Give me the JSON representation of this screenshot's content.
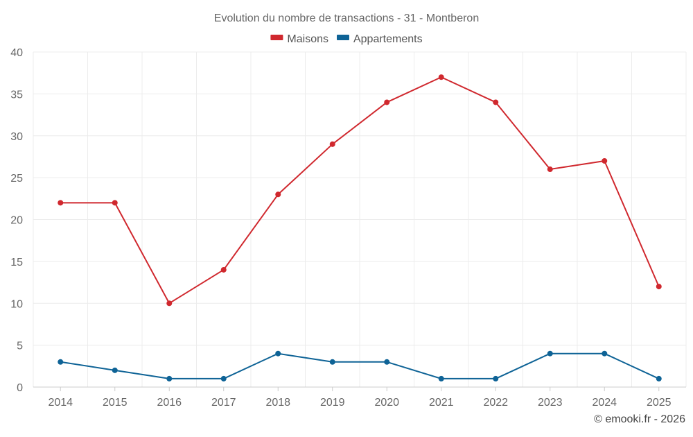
{
  "chart_data": {
    "type": "line",
    "title": "Evolution du nombre de transactions - 31 - Montberon",
    "categories": [
      "2014",
      "2015",
      "2016",
      "2017",
      "2018",
      "2019",
      "2020",
      "2021",
      "2022",
      "2023",
      "2024",
      "2025"
    ],
    "series": [
      {
        "name": "Maisons",
        "color": "#d0282e",
        "values": [
          22,
          22,
          10,
          14,
          23,
          29,
          34,
          37,
          34,
          26,
          27,
          12
        ]
      },
      {
        "name": "Appartements",
        "color": "#0e6396",
        "values": [
          3,
          2,
          1,
          1,
          4,
          3,
          3,
          1,
          1,
          4,
          4,
          1
        ]
      }
    ],
    "xlabel": "",
    "ylabel": "",
    "ylim": [
      0,
      40
    ],
    "yticks": [
      0,
      5,
      10,
      15,
      20,
      25,
      30,
      35,
      40
    ],
    "grid": true,
    "legend_position": "top-center"
  },
  "credit": "© emooki.fr - 2026"
}
